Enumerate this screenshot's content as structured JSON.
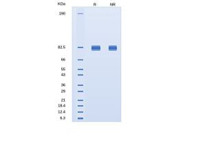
{
  "header": {
    "unit": "KDa",
    "lanes": [
      "R",
      "NR"
    ]
  },
  "ladder": [
    "190",
    "82.5",
    "66",
    "55",
    "43",
    "36",
    "29",
    "21",
    "18.4",
    "12.4",
    "6.3"
  ]
}
